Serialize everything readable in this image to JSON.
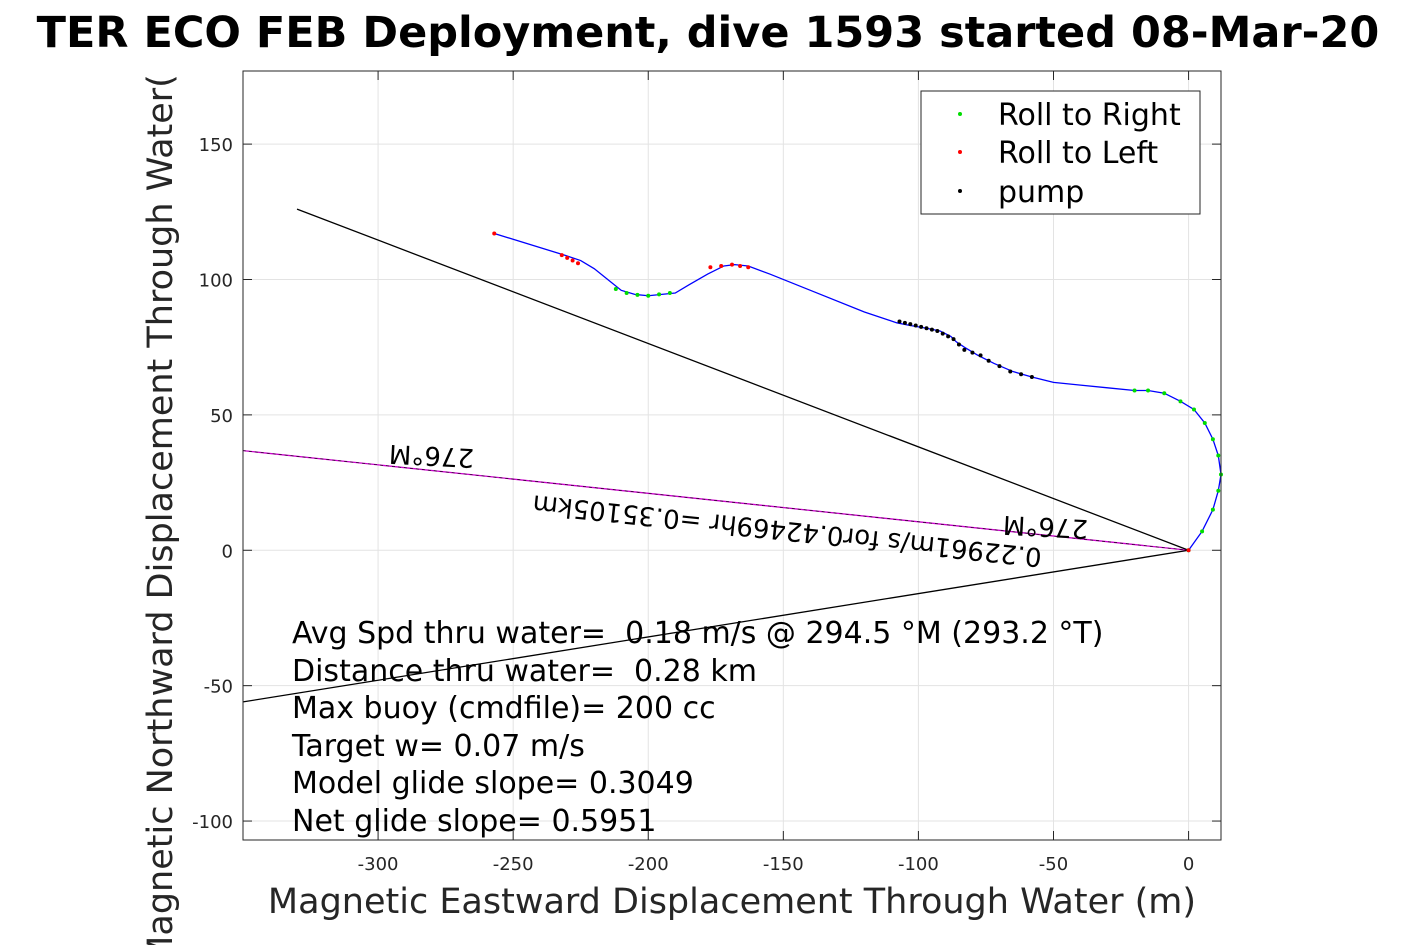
{
  "chart_data": {
    "type": "line",
    "title": "TER ECO FEB Deployment, dive 1593 started 08-Mar-20",
    "xlabel": "Magnetic Eastward Displacement Through Water (m)",
    "ylabel": "Magnetic Northward Displacement Through Water(",
    "xlim": [
      -350,
      12
    ],
    "ylim": [
      -107,
      177
    ],
    "xticks": [
      -300,
      -250,
      -200,
      -150,
      -100,
      -50,
      0
    ],
    "yticks": [
      150,
      100,
      50,
      0,
      -50,
      -100
    ],
    "grid": true,
    "legend": {
      "placement": "top-right",
      "entries": [
        {
          "label": "Roll to Right",
          "color": "#00dd00"
        },
        {
          "label": "Roll to Left",
          "color": "#ff0000"
        },
        {
          "label": "pump",
          "color": "#000000"
        }
      ]
    },
    "track": {
      "color": "#0000ff",
      "x": [
        0,
        5,
        9,
        11,
        12,
        11,
        9,
        6,
        2,
        -3,
        -9,
        -15,
        -20,
        -30,
        -40,
        -50,
        -58,
        -65,
        -72,
        -78,
        -83,
        -86,
        -88,
        -92,
        -97,
        -103,
        -108,
        -120,
        -140,
        -155,
        -163,
        -168,
        -172,
        -178,
        -185,
        -190,
        -195,
        -200,
        -205,
        -210,
        -215,
        -220,
        -225,
        -231,
        -257
      ],
      "y": [
        0,
        7,
        15,
        22,
        28,
        35,
        41,
        47,
        52,
        55,
        58,
        59,
        59,
        60,
        61,
        62,
        64,
        66,
        69,
        72,
        75,
        77,
        79,
        81,
        82,
        83,
        84,
        88,
        96,
        102,
        105,
        105.5,
        105,
        102,
        98,
        95,
        94.5,
        94,
        94.5,
        96,
        100,
        104,
        107,
        109,
        117
      ]
    },
    "roll_to_right": {
      "x": [
        0,
        5,
        9,
        11,
        12,
        11,
        9,
        6,
        2,
        -3,
        -9,
        -15,
        -20,
        -192,
        -196,
        -200,
        -204,
        -208,
        -212
      ],
      "y": [
        0,
        7,
        15,
        22,
        28,
        35,
        41,
        47,
        52,
        55,
        58,
        59,
        59,
        95,
        94.5,
        94,
        94.3,
        95,
        96.5
      ]
    },
    "roll_to_left": {
      "x": [
        0,
        -257,
        -232,
        -230,
        -228,
        -226,
        -177,
        -173,
        -169,
        -166,
        -163
      ],
      "y": [
        0,
        117,
        109,
        108,
        107,
        106,
        104.5,
        105,
        105.5,
        105,
        104.5
      ]
    },
    "pump": {
      "x": [
        -58,
        -62,
        -66,
        -70,
        -74,
        -77,
        -80,
        -83,
        -85,
        -87,
        -89,
        -91,
        -93,
        -95,
        -97,
        -99,
        -101,
        -103,
        -105,
        -107
      ],
      "y": [
        64,
        65,
        66,
        68,
        70,
        72,
        73,
        74,
        76,
        78,
        79,
        80,
        81,
        81.5,
        82,
        82.5,
        83,
        83.5,
        84,
        84.5
      ]
    },
    "reference_lines": [
      {
        "x": [
          0,
          -350
        ],
        "y": [
          0,
          36.8
        ],
        "color": "#cc00cc",
        "label": "0.22961m/s for0.42469hr =0.35105km"
      },
      {
        "x": [
          0,
          -330
        ],
        "y": [
          0,
          126
        ],
        "color": "#000000"
      },
      {
        "x": [
          0,
          -350
        ],
        "y": [
          0,
          -56
        ],
        "color": "#000000"
      }
    ],
    "heading_labels": [
      "276°M",
      "276°M"
    ],
    "current_label": "0.22961m/s for0.42469hr =0.35105km",
    "stats": [
      "Avg Spd thru water=  0.18 m/s @ 294.5 °M (293.2 °T)",
      "Distance thru water=  0.28 km",
      "Max buoy (cmdfile)= 200 cc",
      "Target w= 0.07 m/s",
      "Model glide slope= 0.3049",
      "Net glide slope= 0.5951"
    ]
  }
}
